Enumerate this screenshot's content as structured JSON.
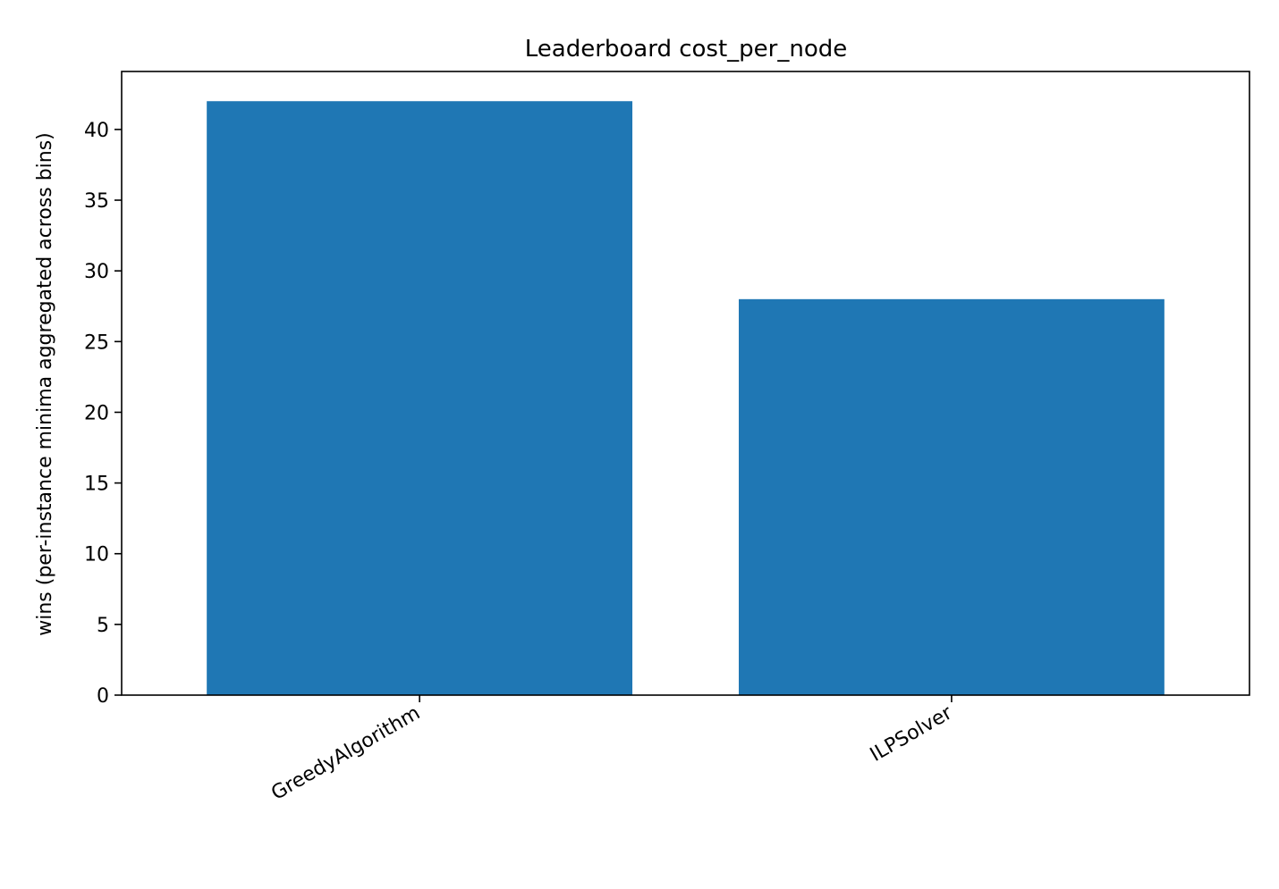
{
  "chart_data": {
    "type": "bar",
    "title": "Leaderboard cost_per_node",
    "xlabel": "",
    "ylabel": "wins (per-instance minima aggregated across bins)",
    "categories": [
      "GreedyAlgorithm",
      "ILPSolver"
    ],
    "values": [
      42,
      28
    ],
    "ylim": [
      0,
      44.1
    ],
    "yticks": [
      0,
      5,
      10,
      15,
      20,
      25,
      30,
      35,
      40
    ],
    "bar_color": "#1f77b4",
    "grid": false,
    "legend": "none"
  }
}
